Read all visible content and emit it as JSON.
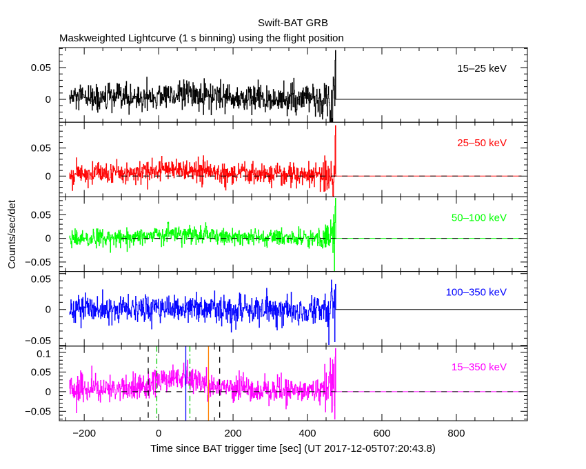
{
  "chart_data": {
    "type": "line",
    "title": "Swift-BAT GRB",
    "subtitle": "Maskweighted Lightcurve (1 s binning) using the flight position",
    "xlabel": "Time since BAT trigger time [sec] (UT 2017-12-05T07:20:43.8)",
    "ylabel": "Counts/sec/det",
    "xlim": [
      -267,
      991
    ],
    "x_ticks": [
      -200,
      0,
      200,
      400,
      600,
      800
    ],
    "x_tick_labels": [
      "−200",
      "0",
      "200",
      "400",
      "600",
      "800"
    ],
    "bin_size_s": 1,
    "data_range": [
      -240,
      475
    ],
    "grid": false,
    "panels": [
      {
        "name": "15–25 keV",
        "color": "#000000",
        "ylim": [
          -0.036,
          0.0815
        ],
        "y_ticks": [
          0,
          0.05
        ],
        "y_tick_labels": [
          "0",
          "0.05"
        ],
        "zero_line": "solid",
        "noise_sigma": 0.011,
        "trend": [
          [
            -240,
            0.001
          ],
          [
            -50,
            0.002
          ],
          [
            50,
            0.008
          ],
          [
            150,
            0.003
          ],
          [
            300,
            0.0
          ],
          [
            440,
            0.0
          ]
        ],
        "peak": [
          475,
          0.077
        ],
        "dip": [
          468,
          -0.03
        ]
      },
      {
        "name": "25–50 keV",
        "color": "#ff0000",
        "ylim": [
          -0.037,
          0.096
        ],
        "y_ticks": [
          0,
          0.05
        ],
        "y_tick_labels": [
          "0",
          "0.05"
        ],
        "zero_line": "dashed",
        "noise_sigma": 0.01,
        "trend": [
          [
            -240,
            0.003
          ],
          [
            -50,
            0.005
          ],
          [
            20,
            0.014
          ],
          [
            150,
            0.006
          ],
          [
            300,
            0.002
          ],
          [
            440,
            0.0
          ]
        ],
        "peak": [
          475,
          0.09
        ],
        "dip": [
          470,
          -0.035
        ]
      },
      {
        "name": "50–100 keV",
        "color": "#00ff00",
        "ylim": [
          -0.07,
          0.088
        ],
        "y_ticks": [
          -0.05,
          0,
          0.05
        ],
        "y_tick_labels": [
          "−0.05",
          "0",
          "0.05"
        ],
        "zero_line": "dashed",
        "noise_sigma": 0.01,
        "trend": [
          [
            -240,
            0.001
          ],
          [
            -50,
            0.003
          ],
          [
            20,
            0.012
          ],
          [
            150,
            0.005
          ],
          [
            300,
            0.0
          ],
          [
            440,
            0.0
          ]
        ],
        "peak": [
          475,
          0.085
        ],
        "dip": [
          470,
          -0.03
        ]
      },
      {
        "name": "100–350 keV",
        "color": "#0000ff",
        "ylim": [
          -0.051,
          0.053
        ],
        "y_ticks": [
          -0.05,
          0,
          0.05
        ],
        "y_tick_labels": [
          "−0.05",
          "0",
          "0.05"
        ],
        "zero_line": "solid",
        "noise_sigma": 0.01,
        "trend": [
          [
            -240,
            0.0
          ],
          [
            0,
            0.003
          ],
          [
            150,
            0.001
          ],
          [
            440,
            0.0
          ]
        ],
        "peak": [
          475,
          0.035
        ],
        "dip": [
          475,
          -0.045
        ]
      },
      {
        "name": "15–350 keV",
        "color": "#ff00ff",
        "ylim": [
          -0.074,
          0.116
        ],
        "y_ticks": [
          -0.05,
          0,
          0.05,
          0.1
        ],
        "y_tick_labels": [
          "−0.05",
          "0",
          "0.05",
          "0.1"
        ],
        "zero_line": "dashed",
        "noise_sigma": 0.017,
        "trend": [
          [
            -240,
            0.005
          ],
          [
            -40,
            0.01
          ],
          [
            0,
            0.035
          ],
          [
            60,
            0.035
          ],
          [
            150,
            0.01
          ],
          [
            300,
            0.003
          ],
          [
            440,
            0.002
          ]
        ],
        "peak": [
          475,
          0.11
        ],
        "dip": [
          475,
          -0.07
        ],
        "markers": [
          {
            "x": -28,
            "color": "#000000",
            "style": "dashed"
          },
          {
            "x": -5,
            "color": "#00cc00",
            "style": "dashdot"
          },
          {
            "x": 73,
            "color": "#0000ff",
            "style": "solid"
          },
          {
            "x": 84,
            "color": "#00cc00",
            "style": "dashdot"
          },
          {
            "x": 134,
            "color": "#ff8000",
            "style": "solid"
          },
          {
            "x": 164,
            "color": "#000000",
            "style": "dashed"
          }
        ]
      }
    ]
  }
}
